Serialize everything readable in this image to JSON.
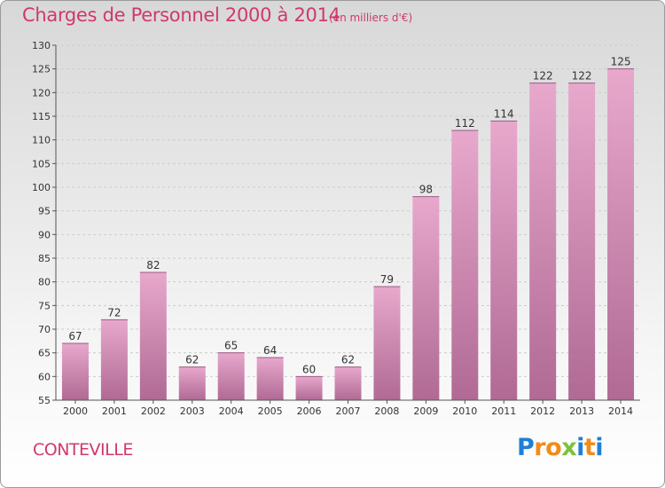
{
  "title": "Charges de Personnel 2000 à 2014",
  "subtitle": "(en milliers d'€)",
  "location": "CONTEVILLE",
  "logo": {
    "letters": [
      {
        "ch": "P",
        "color": "#1e7fd8"
      },
      {
        "ch": "r",
        "color": "#f08c1a"
      },
      {
        "ch": "o",
        "color": "#f08c1a"
      },
      {
        "ch": "x",
        "color": "#7cc23a"
      },
      {
        "ch": "i",
        "color": "#1e7fd8"
      },
      {
        "ch": "t",
        "color": "#f08c1a"
      },
      {
        "ch": "i",
        "color": "#1e7fd8"
      }
    ]
  },
  "colors": {
    "bar_top": "#e8a8cc",
    "bar_bottom": "#b06a94",
    "text": "#d0386e",
    "axis": "#555555",
    "grid": "#cccccc"
  },
  "chart_data": {
    "type": "bar",
    "categories": [
      "2000",
      "2001",
      "2002",
      "2003",
      "2004",
      "2005",
      "2006",
      "2007",
      "2008",
      "2009",
      "2010",
      "2011",
      "2012",
      "2013",
      "2014"
    ],
    "values": [
      67,
      72,
      82,
      62,
      65,
      64,
      60,
      62,
      79,
      98,
      112,
      114,
      122,
      122,
      125
    ],
    "ylim": [
      55,
      130
    ],
    "yticks": [
      55,
      60,
      65,
      70,
      75,
      80,
      85,
      90,
      95,
      100,
      105,
      110,
      115,
      120,
      125,
      130
    ],
    "grid": true
  }
}
